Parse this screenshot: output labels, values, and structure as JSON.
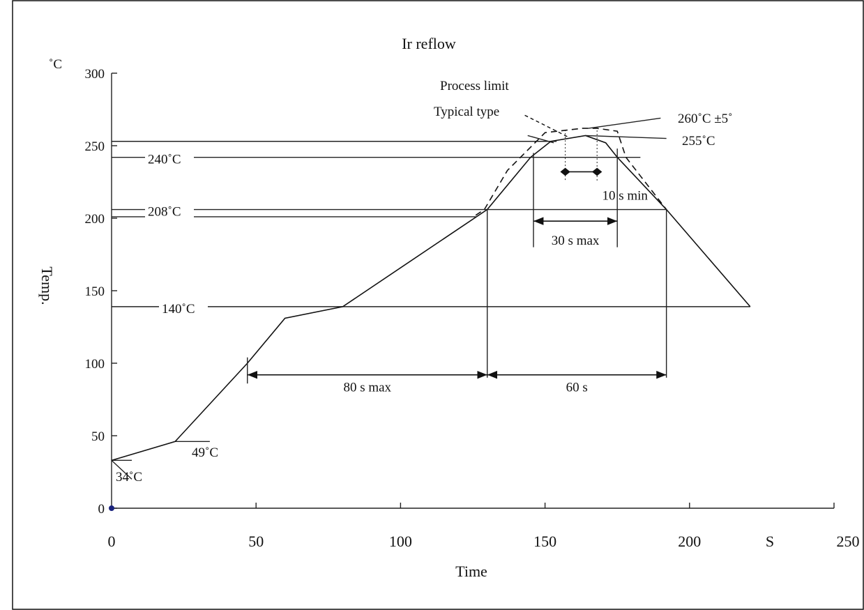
{
  "chart_data": {
    "type": "line",
    "title": "Ir reflow",
    "xlabel": "Time",
    "ylabel": "Temp.",
    "x_unit": "S",
    "y_unit": "˚C",
    "xlim": [
      0,
      250
    ],
    "ylim": [
      0,
      300
    ],
    "x_ticks": [
      0,
      50,
      100,
      150,
      200,
      250
    ],
    "y_ticks": [
      0,
      50,
      100,
      150,
      200,
      250,
      300
    ],
    "grid": false,
    "series": [
      {
        "name": "Typical type",
        "style": "solid",
        "x": [
          0,
          22,
          47,
          60,
          80,
          130,
          145,
          152,
          164,
          171,
          175,
          192,
          221
        ],
        "y": [
          33,
          46,
          100,
          131,
          139,
          206,
          242,
          253,
          257,
          252,
          242,
          206,
          139
        ]
      },
      {
        "name": "Process limit",
        "style": "dashed",
        "x": [
          126,
          129,
          137,
          150,
          163,
          168,
          175,
          178,
          192
        ],
        "y": [
          202,
          206,
          233,
          259,
          262,
          262,
          260,
          242,
          206
        ]
      }
    ],
    "reference_lines": [
      {
        "label": "240˚C",
        "y": 242
      },
      {
        "label": "208˚C",
        "y": 206
      },
      {
        "label": "140˚C",
        "y": 139
      }
    ],
    "point_labels": [
      {
        "label": "34˚C"
      },
      {
        "label": "49˚C"
      },
      {
        "label": "255˚C"
      },
      {
        "label": "260˚C  ±5˚"
      },
      {
        "label": "Process limit"
      },
      {
        "label": "Typical  type"
      }
    ],
    "intervals": [
      {
        "label": "80 s max",
        "x_start": 47,
        "x_end": 130
      },
      {
        "label": "60 s",
        "x_start": 130,
        "x_end": 192
      },
      {
        "label": "30 s max",
        "x_start": 146,
        "x_end": 175
      },
      {
        "label": "10 s min",
        "x_start": 157,
        "x_end": 168
      }
    ]
  }
}
